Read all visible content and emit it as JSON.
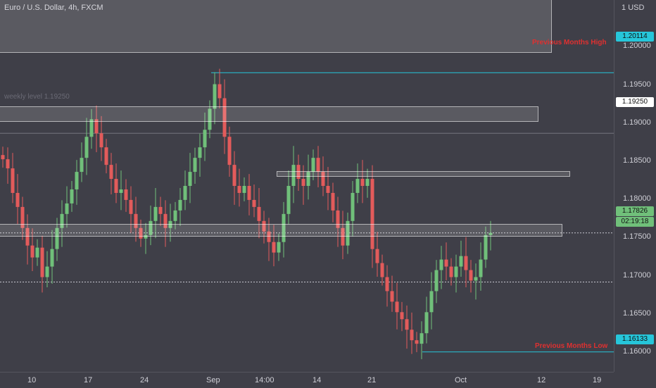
{
  "title": "Euro / U.S. Dollar, 4h, FXCM",
  "currency_label": "USD",
  "price_ticks": [
    "1.20000",
    "1.19500",
    "1.19000",
    "1.18500",
    "1.18000",
    "1.17500",
    "1.17000",
    "1.16500",
    "1.16000"
  ],
  "time_ticks": [
    "10",
    "17",
    "24",
    "Sep",
    "14:00",
    "14",
    "21",
    "Oct",
    "12",
    "19"
  ],
  "price_tags": {
    "high": "1.20114",
    "weekly": "1.19250",
    "current": "1.17826",
    "countdown": "02:19:18",
    "low": "1.16133"
  },
  "annotations": {
    "prev_high": "Previous Months High",
    "prev_low": "Previous Months Low",
    "weekly": "weekly level 1.19250"
  },
  "colors": {
    "background": "#3f3f48",
    "bull": "#70c07a",
    "bear": "#e35b5b",
    "level_line": "#26c6da",
    "annotation": "#e03030"
  },
  "chart_data": {
    "type": "candlestick",
    "symbol": "Euro / U.S. Dollar",
    "timeframe": "4h",
    "source": "FXCM",
    "y_range": [
      1.1585,
      1.2115
    ],
    "levels": [
      {
        "name": "Previous Months High",
        "value": 1.20114
      },
      {
        "name": "weekly level",
        "value": 1.1925
      },
      {
        "name": "Previous Months Low",
        "value": 1.16133
      }
    ],
    "closes": [
      1.1888,
      1.1875,
      1.184,
      1.182,
      1.179,
      1.1765,
      1.1748,
      1.1762,
      1.172,
      1.1735,
      1.176,
      1.179,
      1.181,
      1.1825,
      1.1845,
      1.187,
      1.189,
      1.192,
      1.1945,
      1.1925,
      1.1905,
      1.188,
      1.186,
      1.184,
      1.1845,
      1.183,
      1.181,
      1.179,
      1.1775,
      1.178,
      1.18,
      1.182,
      1.181,
      1.179,
      1.18,
      1.1815,
      1.183,
      1.185,
      1.187,
      1.189,
      1.1905,
      1.193,
      1.196,
      1.1995,
      1.1975,
      1.192,
      1.188,
      1.185,
      1.184,
      1.185,
      1.183,
      1.182,
      1.18,
      1.1785,
      1.177,
      1.1755,
      1.177,
      1.181,
      1.185,
      1.188,
      1.186,
      1.185,
      1.187,
      1.189,
      1.187,
      1.185,
      1.184,
      1.1815,
      1.179,
      1.1765,
      1.18,
      1.184,
      1.186,
      1.185,
      1.186,
      1.176,
      1.174,
      1.172,
      1.17,
      1.1685,
      1.167,
      1.166,
      1.1645,
      1.163,
      1.1625,
      1.164,
      1.167,
      1.17,
      1.173,
      1.1745,
      1.1735,
      1.172,
      1.1735,
      1.175,
      1.173,
      1.1715,
      1.172,
      1.1745,
      1.178,
      1.1783
    ]
  }
}
